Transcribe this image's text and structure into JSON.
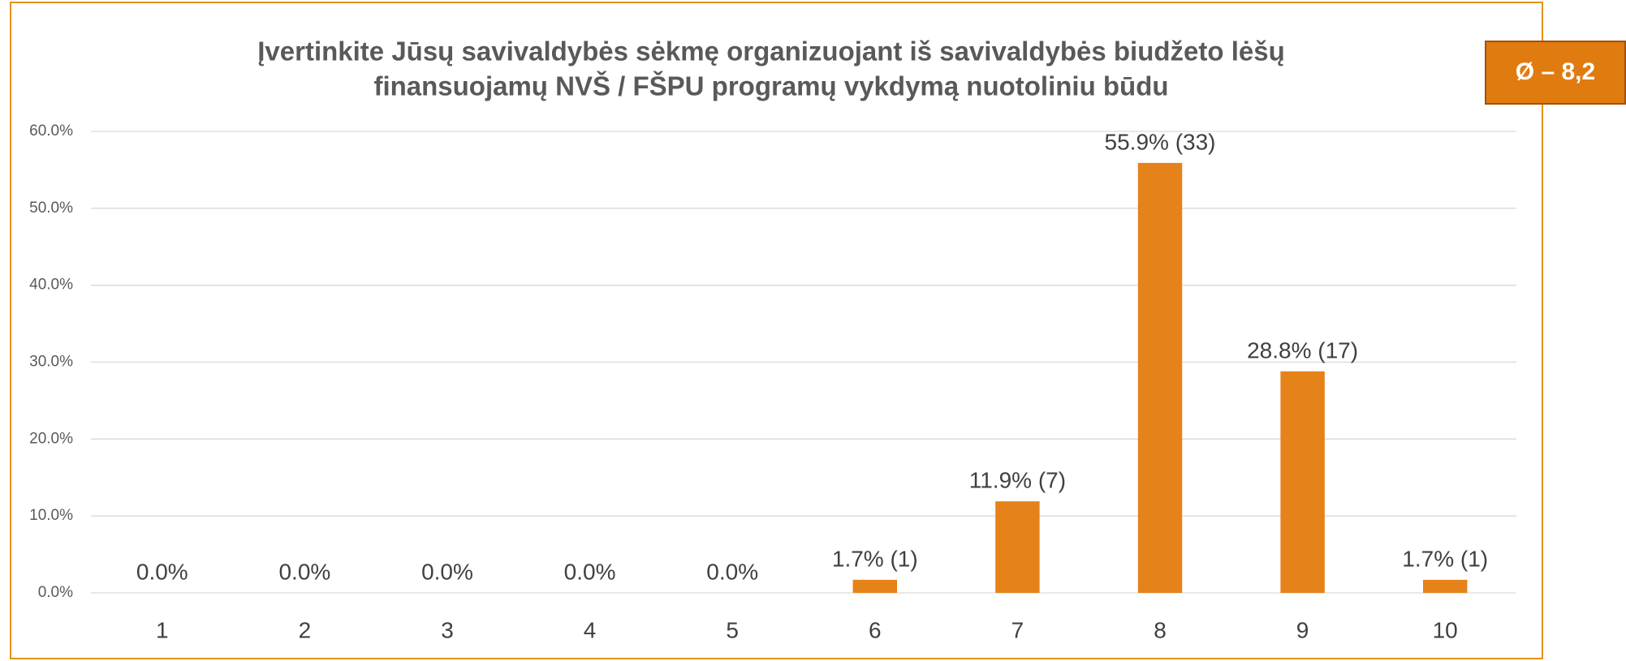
{
  "chart_data": {
    "type": "bar",
    "title": [
      "Įvertinkite Jūsų savivaldybės sėkmę organizuojant iš savivaldybės biudžeto lėšų",
      "finansuojamų NVŠ / FŠPU programų vykdymą nuotoliniu būdu"
    ],
    "annotation": "Ø – 8,2",
    "categories": [
      "1",
      "2",
      "3",
      "4",
      "5",
      "6",
      "7",
      "8",
      "9",
      "10"
    ],
    "values": [
      0,
      0,
      0,
      0,
      0,
      1.7,
      11.9,
      55.9,
      28.8,
      1.7
    ],
    "value_labels": [
      "0.0%",
      "0.0%",
      "0.0%",
      "0.0%",
      "0.0%",
      "1.7% (1)",
      "11.9% (7)",
      "55.9% (33)",
      "28.8% (17)",
      "1.7% (1)"
    ],
    "color": "#e5821a",
    "ylim": [
      0,
      60
    ],
    "yticks": [
      {
        "value": 0,
        "label": "0.0%"
      },
      {
        "value": 10,
        "label": "10.0%"
      },
      {
        "value": 20,
        "label": "20.0%"
      },
      {
        "value": 30,
        "label": "30.0%"
      },
      {
        "value": 40,
        "label": "40.0%"
      },
      {
        "value": 50,
        "label": "50.0%"
      },
      {
        "value": 60,
        "label": "60.0%"
      }
    ],
    "grid": true
  }
}
